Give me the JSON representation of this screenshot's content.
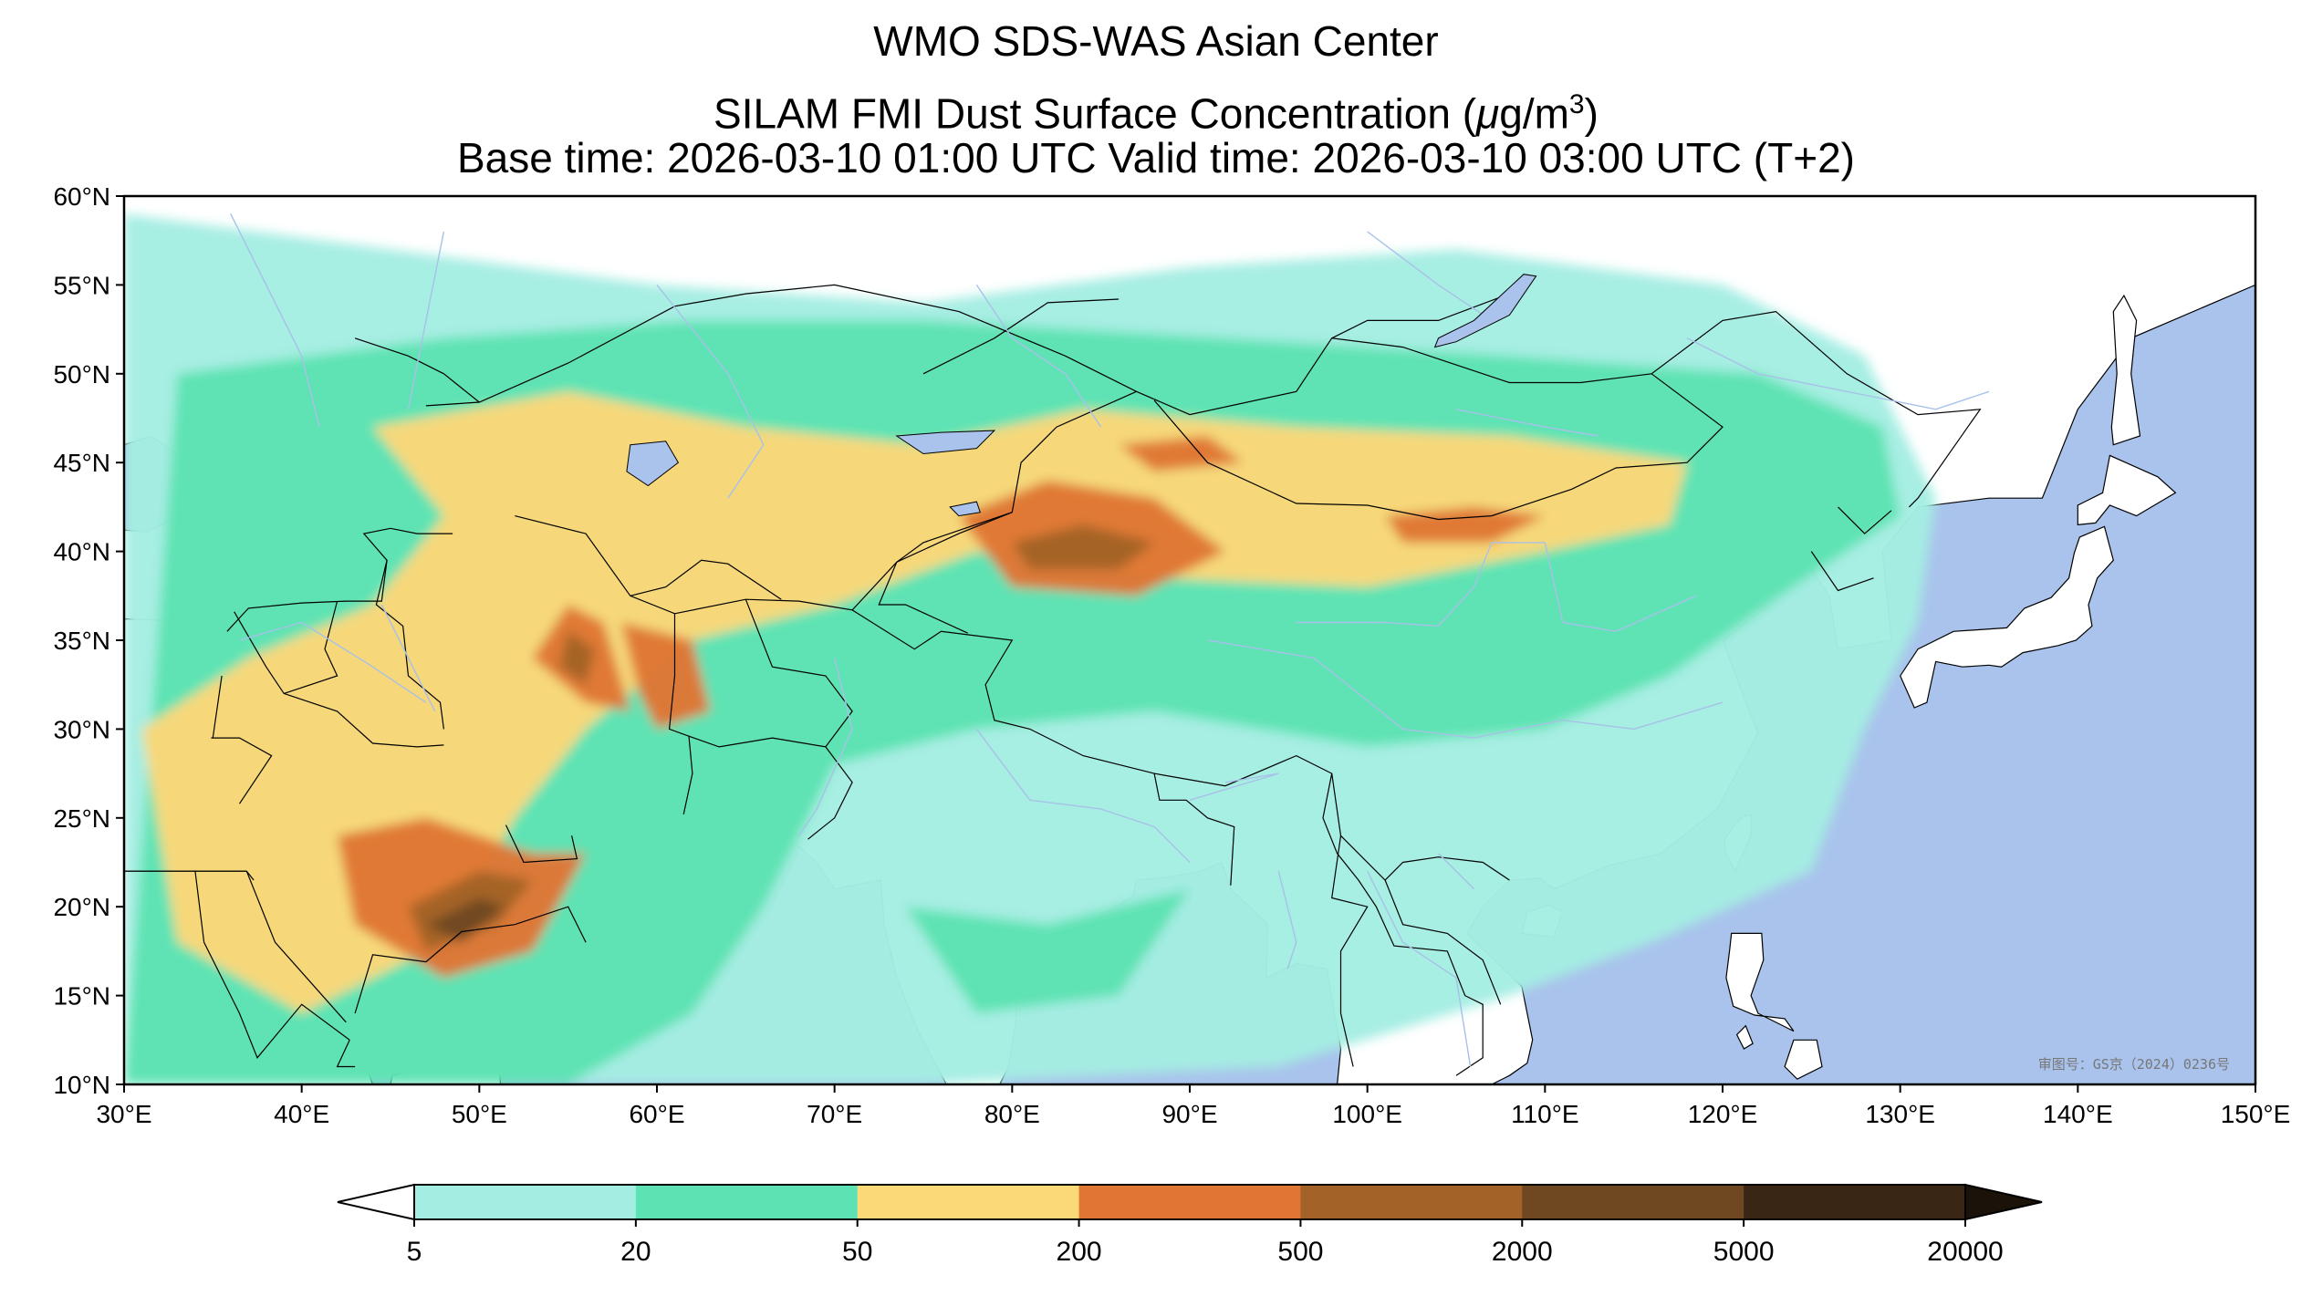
{
  "title": {
    "line1": "WMO SDS-WAS Asian Center",
    "line2_prefix": "SILAM FMI Dust Surface Concentration (",
    "line2_mu": "μ",
    "line2_unit": "g/m",
    "line2_exp": "3",
    "line2_suffix": ")",
    "line3": "Base time: 2026-03-10 01:00 UTC Valid time: 2026-03-10 03:00 UTC (T+2)"
  },
  "map": {
    "projection": "PlateCarree",
    "lon_range": [
      30,
      150
    ],
    "lat_range": [
      10,
      60
    ],
    "lon_ticks": [
      {
        "value": 30,
        "label": "30°E"
      },
      {
        "value": 40,
        "label": "40°E"
      },
      {
        "value": 50,
        "label": "50°E"
      },
      {
        "value": 60,
        "label": "60°E"
      },
      {
        "value": 70,
        "label": "70°E"
      },
      {
        "value": 80,
        "label": "80°E"
      },
      {
        "value": 90,
        "label": "90°E"
      },
      {
        "value": 100,
        "label": "100°E"
      },
      {
        "value": 110,
        "label": "110°E"
      },
      {
        "value": 120,
        "label": "120°E"
      },
      {
        "value": 130,
        "label": "130°E"
      },
      {
        "value": 140,
        "label": "140°E"
      },
      {
        "value": 150,
        "label": "150°E"
      }
    ],
    "lat_ticks": [
      {
        "value": 60,
        "label": "60°N"
      },
      {
        "value": 55,
        "label": "55°N"
      },
      {
        "value": 50,
        "label": "50°N"
      },
      {
        "value": 45,
        "label": "45°N"
      },
      {
        "value": 40,
        "label": "40°N"
      },
      {
        "value": 35,
        "label": "35°N"
      },
      {
        "value": 30,
        "label": "30°N"
      },
      {
        "value": 25,
        "label": "25°N"
      },
      {
        "value": 20,
        "label": "20°N"
      },
      {
        "value": 15,
        "label": "15°N"
      },
      {
        "value": 10,
        "label": "10°N"
      }
    ],
    "colors": {
      "ocean": "#a9c3ec",
      "land": "#ffffff",
      "border": "#000000",
      "river": "#a8c1e8"
    },
    "stamp": "审图号：GS京（2024）0236号"
  },
  "colorbar": {
    "extend": "both",
    "under_color": "#ffffff",
    "over_color": "#1b1209",
    "levels": [
      {
        "value": 5,
        "label": "5"
      },
      {
        "value": 20,
        "label": "20"
      },
      {
        "value": 50,
        "label": "50"
      },
      {
        "value": 200,
        "label": "200"
      },
      {
        "value": 500,
        "label": "500"
      },
      {
        "value": 2000,
        "label": "2000"
      },
      {
        "value": 5000,
        "label": "5000"
      },
      {
        "value": 20000,
        "label": "20000"
      }
    ],
    "colors": [
      "#a4ede2",
      "#5de2b3",
      "#fbd878",
      "#df7633",
      "#a36228",
      "#6f4720",
      "#3a2614"
    ]
  },
  "dust_field": {
    "description_units": "μg/m3",
    "regions": [
      {
        "level": 0,
        "points": [
          [
            30,
            59
          ],
          [
            45,
            57
          ],
          [
            60,
            55
          ],
          [
            75,
            54
          ],
          [
            90,
            56
          ],
          [
            105,
            57
          ],
          [
            120,
            55
          ],
          [
            128,
            51
          ],
          [
            132,
            43
          ],
          [
            131,
            36
          ],
          [
            128,
            30
          ],
          [
            125,
            22
          ],
          [
            116,
            18
          ],
          [
            108,
            15
          ],
          [
            95,
            11
          ],
          [
            75,
            10
          ],
          [
            62,
            10
          ],
          [
            45,
            10
          ],
          [
            30,
            10
          ]
        ]
      },
      {
        "level": 1,
        "points": [
          [
            33,
            50
          ],
          [
            48,
            52
          ],
          [
            62,
            53
          ],
          [
            75,
            53
          ],
          [
            92,
            52
          ],
          [
            108,
            51
          ],
          [
            122,
            50
          ],
          [
            129,
            47
          ],
          [
            130,
            42
          ],
          [
            124,
            38
          ],
          [
            117,
            33
          ],
          [
            110,
            30
          ],
          [
            100,
            29
          ],
          [
            88,
            31
          ],
          [
            78,
            30
          ],
          [
            70,
            28
          ],
          [
            66,
            20
          ],
          [
            62,
            14
          ],
          [
            55,
            10
          ],
          [
            30,
            10
          ]
        ]
      },
      {
        "level": 1,
        "points": [
          [
            74,
            20
          ],
          [
            82,
            19
          ],
          [
            90,
            21
          ],
          [
            86,
            15
          ],
          [
            78,
            14
          ]
        ]
      },
      {
        "level": 2,
        "points": [
          [
            44,
            47
          ],
          [
            55,
            49
          ],
          [
            65,
            47
          ],
          [
            75,
            46
          ],
          [
            84,
            48
          ],
          [
            96,
            47
          ],
          [
            108,
            46.5
          ],
          [
            118,
            45
          ],
          [
            117,
            41.5
          ],
          [
            110,
            40
          ],
          [
            100,
            38
          ],
          [
            88,
            38.5
          ],
          [
            78,
            40
          ],
          [
            70,
            37
          ],
          [
            62,
            35
          ],
          [
            56,
            30
          ],
          [
            52,
            25
          ],
          [
            48,
            18
          ],
          [
            40,
            14
          ],
          [
            33,
            18
          ],
          [
            31,
            30
          ],
          [
            37,
            34
          ],
          [
            44,
            37
          ],
          [
            48,
            42
          ]
        ]
      },
      {
        "level": 3,
        "points": [
          [
            77,
            42
          ],
          [
            82,
            44
          ],
          [
            88,
            43
          ],
          [
            92,
            40
          ],
          [
            87,
            37.5
          ],
          [
            80,
            38
          ]
        ]
      },
      {
        "level": 3,
        "points": [
          [
            86,
            46
          ],
          [
            91,
            46.5
          ],
          [
            93,
            45
          ],
          [
            88,
            44.5
          ]
        ]
      },
      {
        "level": 3,
        "points": [
          [
            101,
            42
          ],
          [
            106,
            42.5
          ],
          [
            110,
            42
          ],
          [
            107,
            40.5
          ],
          [
            102,
            40.5
          ]
        ]
      },
      {
        "level": 3,
        "points": [
          [
            55,
            37
          ],
          [
            57,
            36
          ],
          [
            58.5,
            31
          ],
          [
            56,
            31.5
          ],
          [
            53,
            34
          ]
        ]
      },
      {
        "level": 3,
        "points": [
          [
            58,
            36
          ],
          [
            62,
            35
          ],
          [
            63,
            31
          ],
          [
            60,
            30
          ],
          [
            59,
            32
          ]
        ]
      },
      {
        "level": 3,
        "points": [
          [
            42,
            24
          ],
          [
            47,
            25
          ],
          [
            53,
            23
          ],
          [
            56,
            23
          ],
          [
            53,
            17.5
          ],
          [
            48,
            16
          ],
          [
            43,
            19
          ]
        ]
      },
      {
        "level": 4,
        "points": [
          [
            80,
            40.5
          ],
          [
            84,
            41.5
          ],
          [
            88,
            40.5
          ],
          [
            86,
            39
          ],
          [
            81,
            39
          ]
        ]
      },
      {
        "level": 4,
        "points": [
          [
            55,
            35.5
          ],
          [
            56.5,
            34.5
          ],
          [
            56,
            32.5
          ],
          [
            54.5,
            33.5
          ]
        ]
      },
      {
        "level": 4,
        "points": [
          [
            46,
            20
          ],
          [
            50,
            22
          ],
          [
            53,
            21.5
          ],
          [
            51,
            19
          ],
          [
            47,
            17.5
          ]
        ]
      },
      {
        "level": 5,
        "points": [
          [
            47,
            19
          ],
          [
            50,
            20.5
          ],
          [
            51.5,
            20
          ],
          [
            49,
            18
          ]
        ]
      }
    ]
  }
}
